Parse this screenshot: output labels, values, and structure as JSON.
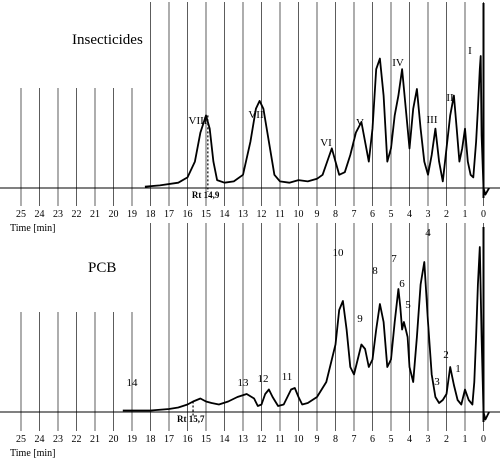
{
  "chart_data": [
    {
      "type": "line",
      "title": "Insecticides",
      "xlabel": "Time [min]",
      "x_ticks": [
        25,
        24,
        23,
        22,
        21,
        20,
        19,
        18,
        17,
        16,
        15,
        14,
        13,
        12,
        11,
        10,
        9,
        8,
        7,
        6,
        5,
        4,
        3,
        2,
        1,
        0
      ],
      "xlim": [
        25,
        0
      ],
      "grid": true,
      "series": [
        {
          "x": [
            18.3,
            17.5,
            16.5,
            16.0,
            15.6,
            15.3,
            15.0,
            14.8,
            14.6,
            14.4,
            14.0,
            13.5,
            13.0,
            12.6,
            12.3,
            12.1,
            11.9,
            11.6,
            11.3,
            11.0,
            10.5,
            10.0,
            9.5,
            9.0,
            8.7,
            8.4,
            8.2,
            8.0,
            7.8,
            7.5,
            7.2,
            6.9,
            6.6,
            6.4,
            6.2,
            6.0,
            5.8,
            5.6,
            5.4,
            5.2,
            5.0,
            4.8,
            4.6,
            4.4,
            4.2,
            4.0,
            3.8,
            3.6,
            3.4,
            3.2,
            3.0,
            2.8,
            2.6,
            2.4,
            2.2,
            2.0,
            1.8,
            1.6,
            1.45,
            1.3,
            1.15,
            1.0,
            0.85,
            0.7,
            0.55,
            0.4,
            0.3,
            0.2,
            0.15,
            0.1,
            0.0,
            -0.1,
            -0.3
          ],
          "y": [
            0.01,
            0.02,
            0.04,
            0.08,
            0.2,
            0.42,
            0.55,
            0.45,
            0.2,
            0.06,
            0.04,
            0.05,
            0.1,
            0.35,
            0.6,
            0.66,
            0.6,
            0.35,
            0.1,
            0.05,
            0.04,
            0.06,
            0.05,
            0.07,
            0.1,
            0.22,
            0.3,
            0.2,
            0.1,
            0.12,
            0.25,
            0.42,
            0.5,
            0.35,
            0.2,
            0.45,
            0.9,
            0.98,
            0.7,
            0.2,
            0.3,
            0.55,
            0.7,
            0.9,
            0.6,
            0.3,
            0.6,
            0.75,
            0.45,
            0.2,
            0.1,
            0.25,
            0.45,
            0.2,
            0.05,
            0.3,
            0.55,
            0.7,
            0.45,
            0.2,
            0.3,
            0.45,
            0.2,
            0.1,
            0.08,
            0.35,
            0.6,
            0.9,
            1.0,
            0.4,
            0.0,
            -0.05,
            0.0
          ]
        }
      ],
      "annotations": [
        {
          "text": "I",
          "x": 0.45
        },
        {
          "text": "II",
          "x": 1.5
        },
        {
          "text": "III",
          "x": 2.5
        },
        {
          "text": "IV",
          "x": 4.4
        },
        {
          "text": "V",
          "x": 6.6
        },
        {
          "text": "VI",
          "x": 8.6
        },
        {
          "text": "VII",
          "x": 12.2
        },
        {
          "text": "VIII",
          "x": 15.2
        }
      ],
      "marker": {
        "text": "Rt 14,9",
        "x": 14.9
      }
    },
    {
      "type": "line",
      "title": "PCB",
      "xlabel": "Time [min]",
      "x_ticks": [
        25,
        24,
        23,
        22,
        21,
        20,
        19,
        18,
        17,
        16,
        15,
        14,
        13,
        12,
        11,
        10,
        9,
        8,
        7,
        6,
        5,
        4,
        3,
        2,
        1,
        0
      ],
      "xlim": [
        25,
        0
      ],
      "grid": true,
      "series": [
        {
          "x": [
            19.5,
            19.0,
            18.0,
            17.0,
            16.5,
            16.0,
            15.7,
            15.3,
            15.0,
            14.7,
            14.3,
            13.8,
            13.3,
            12.8,
            12.4,
            12.2,
            12.0,
            11.8,
            11.6,
            11.4,
            11.1,
            10.8,
            10.6,
            10.4,
            10.2,
            10.0,
            9.8,
            9.5,
            9.0,
            8.5,
            8.0,
            7.8,
            7.6,
            7.4,
            7.2,
            7.0,
            6.8,
            6.6,
            6.4,
            6.2,
            6.0,
            5.8,
            5.6,
            5.4,
            5.2,
            5.0,
            4.8,
            4.6,
            4.5,
            4.4,
            4.3,
            4.2,
            4.1,
            4.0,
            3.8,
            3.6,
            3.4,
            3.2,
            3.0,
            2.8,
            2.6,
            2.4,
            2.2,
            2.0,
            1.8,
            1.6,
            1.4,
            1.2,
            1.0,
            0.8,
            0.6,
            0.5,
            0.4,
            0.3,
            0.2,
            0.1,
            0.0,
            -0.1,
            -0.3
          ],
          "y": [
            0.01,
            0.01,
            0.01,
            0.02,
            0.03,
            0.05,
            0.07,
            0.09,
            0.07,
            0.06,
            0.05,
            0.07,
            0.1,
            0.12,
            0.09,
            0.04,
            0.05,
            0.12,
            0.15,
            0.1,
            0.04,
            0.05,
            0.1,
            0.15,
            0.16,
            0.1,
            0.05,
            0.06,
            0.1,
            0.2,
            0.45,
            0.68,
            0.74,
            0.55,
            0.3,
            0.25,
            0.35,
            0.45,
            0.42,
            0.3,
            0.35,
            0.55,
            0.72,
            0.6,
            0.3,
            0.35,
            0.6,
            0.82,
            0.7,
            0.55,
            0.6,
            0.55,
            0.5,
            0.3,
            0.2,
            0.5,
            0.85,
            1.0,
            0.6,
            0.25,
            0.1,
            0.06,
            0.08,
            0.12,
            0.3,
            0.18,
            0.08,
            0.05,
            0.15,
            0.08,
            0.05,
            0.2,
            0.5,
            0.85,
            1.1,
            0.5,
            0.0,
            -0.05,
            0.0
          ]
        }
      ],
      "annotations": [
        {
          "text": "1",
          "x": 0.9
        },
        {
          "text": "2",
          "x": 1.85
        },
        {
          "text": "3",
          "x": 2.6
        },
        {
          "text": "4",
          "x": 2.6
        },
        {
          "text": "5",
          "x": 4.0
        },
        {
          "text": "6",
          "x": 4.2
        },
        {
          "text": "7",
          "x": 4.6
        },
        {
          "text": "8",
          "x": 5.6
        },
        {
          "text": "9",
          "x": 6.4
        },
        {
          "text": "10",
          "x": 7.6
        },
        {
          "text": "11",
          "x": 10.2
        },
        {
          "text": "12",
          "x": 11.6
        },
        {
          "text": "13",
          "x": 12.8
        },
        {
          "text": "14",
          "x": 15.7
        }
      ],
      "marker": {
        "text": "Rt 15,7",
        "x": 15.7
      }
    }
  ]
}
